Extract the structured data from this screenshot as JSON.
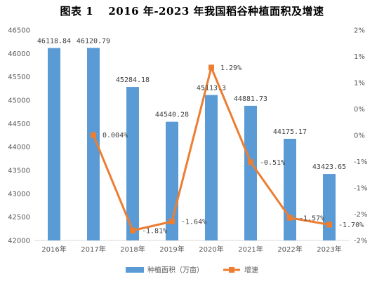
{
  "chart_data": {
    "type": "bar",
    "title": "图表 1　  2016 年-2023 年我国稻谷种植面积及增速",
    "categories": [
      "2016年",
      "2017年",
      "2018年",
      "2019年",
      "2020年",
      "2021年",
      "2022年",
      "2023年"
    ],
    "series": [
      {
        "name": "种植面积（万亩）",
        "type": "bar",
        "axis": "left",
        "color": "#5B9BD5",
        "values": [
          46118.84,
          46120.79,
          45284.18,
          44540.28,
          45113.3,
          44881.73,
          44175.17,
          43423.65
        ],
        "labels": [
          "46118.84",
          "46120.79",
          "45284.18",
          "44540.28",
          "45113.3",
          "44881.73",
          "44175.17",
          "43423.65"
        ]
      },
      {
        "name": "增速",
        "type": "line",
        "axis": "right",
        "color": "#ED7D31",
        "x": [
          "2017年",
          "2018年",
          "2019年",
          "2020年",
          "2021年",
          "2022年",
          "2023年"
        ],
        "values": [
          0.004,
          -1.81,
          -1.64,
          1.29,
          -0.51,
          -1.57,
          -1.7
        ],
        "labels": [
          "0.004%",
          "-1.81%",
          "-1.64%",
          "1.29%",
          "-0.51%",
          "-1.57%",
          "-1.70%"
        ]
      }
    ],
    "y_left": {
      "min": 42000,
      "max": 46500,
      "step": 500
    },
    "y_right": {
      "min": -2,
      "max": 2,
      "ticks": [
        2,
        1.5,
        1,
        0.5,
        0,
        -0.5,
        -1,
        -1.5,
        -2
      ],
      "tick_labels": [
        "2%",
        "1%",
        "1%",
        "0%",
        "0%",
        "-1%",
        "-1%",
        "-2%",
        "-2%"
      ]
    },
    "grid": false,
    "legend": "bottom"
  }
}
